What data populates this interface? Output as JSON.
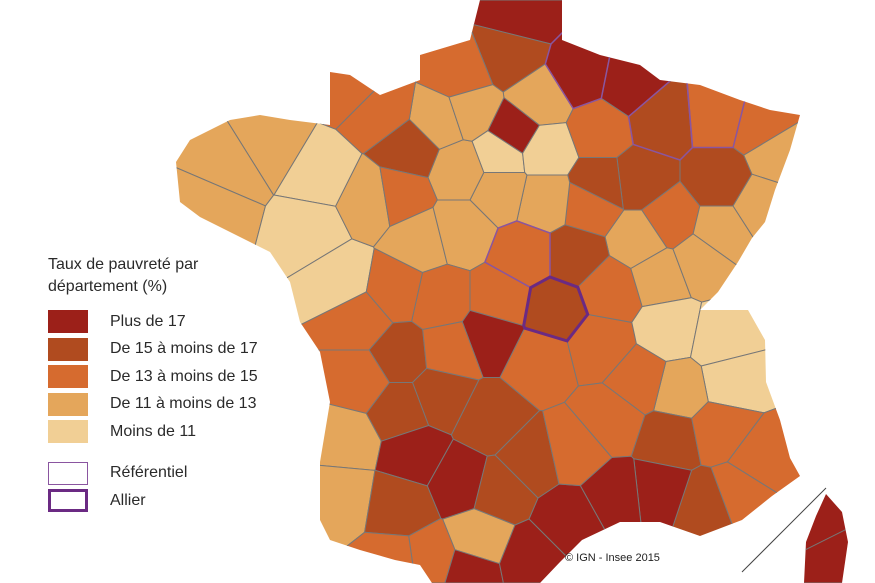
{
  "legend": {
    "title_line1": "Taux de pauvreté par",
    "title_line2": "département (%)",
    "classes": [
      {
        "label": "Plus de 17",
        "color": "#9c2019"
      },
      {
        "label": "De 15 à moins de 17",
        "color": "#b04b1f"
      },
      {
        "label": "De 13 à moins de 15",
        "color": "#d66b2f"
      },
      {
        "label": "De 11 à moins de 13",
        "color": "#e4a65b"
      },
      {
        "label": "Moins de 11",
        "color": "#f1cf95"
      }
    ],
    "outlines": [
      {
        "label": "Référentiel",
        "color": "#8a55a0"
      },
      {
        "label": "Allier",
        "color": "#6b2a83"
      }
    ]
  },
  "credit": "© IGN - Insee 2015"
}
